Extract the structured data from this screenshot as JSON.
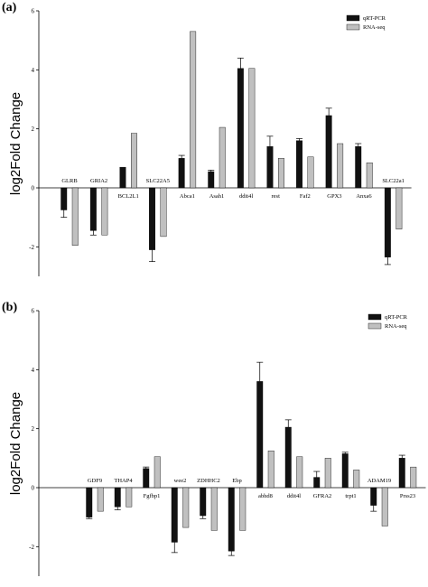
{
  "chart_data": [
    {
      "panel_label": "(a)",
      "type": "bar",
      "ylabel": "log2Fold Change",
      "ylim": [
        -3,
        6
      ],
      "yticks": [
        -2,
        0,
        2,
        4,
        6
      ],
      "legend": {
        "placement": "top-right"
      },
      "categories": [
        "GLRB",
        "GRIA2",
        "BCL2L1",
        "SLC22A5",
        "Abca1",
        "Asah1",
        "ddit4l",
        "rest",
        "Faf2",
        "GPX3",
        "Anxa6",
        "SLC22a1"
      ],
      "series": [
        {
          "name": "qRT-PCR",
          "color": "#111111",
          "values": [
            -0.75,
            -1.45,
            0.7,
            -2.1,
            1.0,
            0.55,
            4.05,
            1.4,
            1.6,
            2.45,
            1.4,
            -2.35
          ],
          "errors": [
            0.25,
            0.15,
            0.0,
            0.4,
            0.1,
            0.05,
            0.35,
            0.35,
            0.07,
            0.25,
            0.1,
            0.25
          ]
        },
        {
          "name": "RNA-seq",
          "color": "#c0c0c0",
          "values": [
            -1.95,
            -1.6,
            1.85,
            -1.65,
            5.3,
            2.05,
            4.05,
            1.0,
            1.05,
            1.5,
            0.85,
            -1.4
          ],
          "errors": [
            0,
            0,
            0,
            0,
            0,
            0,
            0,
            0,
            0,
            0,
            0,
            0
          ]
        }
      ]
    },
    {
      "panel_label": "(b)",
      "type": "bar",
      "ylabel": "log2Fold Change",
      "ylim": [
        -3,
        6
      ],
      "yticks": [
        -2,
        0,
        2,
        4,
        6
      ],
      "legend": {
        "placement": "top-right"
      },
      "categories": [
        "GDF9",
        "THAP4",
        "Fgfbp1",
        "wee2",
        "ZDHHC2",
        "Ebp",
        "abhd8",
        "ddit4l",
        "GFRA2",
        "trpt1",
        "ADAM19",
        "Prss23"
      ],
      "series": [
        {
          "name": "qRT-PCR",
          "color": "#111111",
          "values": [
            -1.0,
            -0.65,
            0.65,
            -1.85,
            -0.95,
            -2.15,
            3.6,
            2.05,
            0.35,
            1.15,
            -0.6,
            1.0
          ],
          "errors": [
            0.05,
            0.1,
            0.05,
            0.35,
            0.1,
            0.15,
            0.65,
            0.25,
            0.2,
            0.05,
            0.2,
            0.1
          ]
        },
        {
          "name": "RNA-seq",
          "color": "#c0c0c0",
          "values": [
            -0.8,
            -0.65,
            1.05,
            -1.35,
            -1.45,
            -1.45,
            1.25,
            1.05,
            1.0,
            0.6,
            -1.3,
            0.7
          ],
          "errors": [
            0,
            0,
            0,
            0,
            0,
            0,
            0,
            0,
            0,
            0,
            0,
            0
          ]
        }
      ]
    }
  ]
}
